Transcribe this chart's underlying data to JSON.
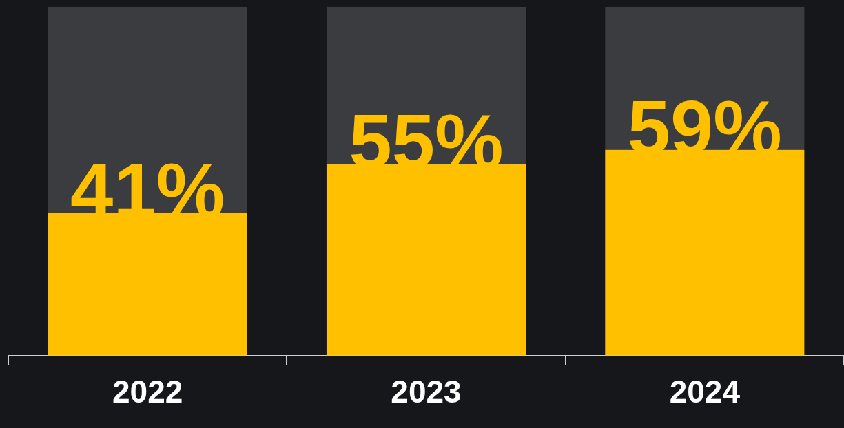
{
  "chart_data": {
    "type": "bar",
    "stacked": true,
    "categories": [
      "2022",
      "2023",
      "2024"
    ],
    "series": [
      {
        "color": "#ffc000",
        "values": [
          41,
          55,
          59
        ],
        "value_labels": [
          "41%",
          "55%",
          "59%"
        ]
      },
      {
        "color": "#3a3c3f",
        "values": [
          59,
          45,
          41
        ]
      }
    ]
  }
}
